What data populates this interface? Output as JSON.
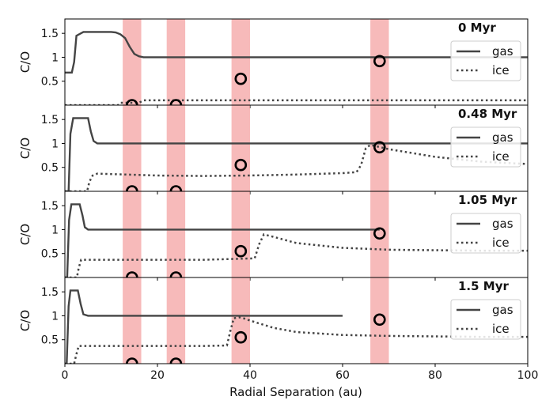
{
  "chart_data": {
    "type": "line",
    "xlabel": "Radial Separation (au)",
    "ylabel": "C/O",
    "xlim": [
      0,
      100
    ],
    "ylim": [
      0,
      1.8
    ],
    "xticks": [
      0,
      20,
      40,
      60,
      80,
      100
    ],
    "xtick_labels": [
      "0",
      "20",
      "40",
      "60",
      "80",
      "100"
    ],
    "yticks": [
      0.5,
      1,
      1.5
    ],
    "ytick_labels": [
      "0.5",
      "1",
      "1.5"
    ],
    "legend": {
      "position": "right",
      "entries": [
        "gas",
        "ice"
      ]
    },
    "colors": {
      "line": "#444444",
      "band": "#f4a3a3",
      "marker": "#000000"
    },
    "shaded_bands": [
      [
        12.5,
        16.5
      ],
      [
        22,
        26
      ],
      [
        36,
        40
      ],
      [
        66,
        70
      ]
    ],
    "markers": {
      "x": [
        14.5,
        24,
        38,
        68
      ],
      "y": [
        0,
        0,
        0.55,
        0.92
      ]
    },
    "panels": [
      {
        "title": "0 Myr",
        "series": [
          {
            "name": "gas",
            "style": "solid",
            "x": [
              0,
              1.5,
              2,
              2.5,
              4,
              10,
              11,
              12,
              13,
              14,
              15,
              16,
              17,
              20,
              40,
              60,
              80,
              100
            ],
            "y": [
              0.68,
              0.68,
              0.9,
              1.45,
              1.53,
              1.53,
              1.52,
              1.48,
              1.4,
              1.22,
              1.07,
              1.02,
              1.0,
              1.0,
              1.0,
              1.0,
              1.0,
              1.0
            ]
          },
          {
            "name": "ice",
            "style": "dotted",
            "x": [
              0,
              11.5,
              12,
              16,
              17,
              100
            ],
            "y": [
              0,
              0,
              0.05,
              0.05,
              0.1,
              0.1
            ]
          }
        ]
      },
      {
        "title": "0.48 Myr",
        "series": [
          {
            "name": "gas",
            "style": "solid",
            "x": [
              0,
              0.8,
              1.2,
              1.8,
              3,
              5,
              5.6,
              6.2,
              7,
              10,
              30,
              50,
              70,
              90,
              100
            ],
            "y": [
              0.0,
              0.0,
              1.2,
              1.53,
              1.53,
              1.53,
              1.25,
              1.05,
              1.0,
              1.0,
              1.0,
              1.0,
              1.0,
              1.0,
              1.0
            ],
            "_x_end": 100
          },
          {
            "name": "ice",
            "style": "dotted",
            "x": [
              0,
              4.8,
              5.3,
              6,
              7,
              10,
              20,
              30,
              40,
              50,
              60,
              63,
              64,
              65,
              66,
              70,
              80,
              90,
              100
            ],
            "y": [
              0,
              0,
              0.2,
              0.33,
              0.37,
              0.36,
              0.33,
              0.32,
              0.33,
              0.35,
              0.38,
              0.4,
              0.55,
              0.9,
              0.97,
              0.88,
              0.72,
              0.62,
              0.57
            ]
          }
        ]
      },
      {
        "title": "1.05 Myr",
        "series": [
          {
            "name": "gas",
            "style": "solid",
            "x": [
              0,
              0.5,
              0.9,
              1.4,
              2.5,
              3.2,
              3.8,
              4.3,
              5,
              10,
              30,
              50,
              68
            ],
            "y": [
              0.0,
              0.0,
              1.2,
              1.53,
              1.53,
              1.53,
              1.3,
              1.05,
              1.0,
              1.0,
              1.0,
              1.0,
              1.0
            ]
          },
          {
            "name": "ice",
            "style": "dotted",
            "x": [
              0,
              2.6,
              3,
              3.5,
              10,
              20,
              30,
              41,
              42,
              43,
              45,
              50,
              60,
              70,
              80,
              90,
              100
            ],
            "y": [
              0,
              0,
              0.2,
              0.37,
              0.37,
              0.37,
              0.37,
              0.4,
              0.7,
              0.9,
              0.85,
              0.72,
              0.62,
              0.58,
              0.57,
              0.56,
              0.56
            ]
          }
        ]
      },
      {
        "title": "1.5 Myr",
        "series": [
          {
            "name": "gas",
            "style": "solid",
            "x": [
              0,
              0.4,
              0.8,
              1.2,
              2.3,
              2.8,
              3.4,
              4,
              5,
              10,
              30,
              50,
              60
            ],
            "y": [
              0.0,
              0.0,
              1.2,
              1.53,
              1.53,
              1.53,
              1.25,
              1.03,
              1.0,
              1.0,
              1.0,
              1.0,
              1.0
            ]
          },
          {
            "name": "ice",
            "style": "dotted",
            "x": [
              0,
              2,
              2.5,
              3,
              10,
              20,
              30,
              35,
              35.8,
              36.5,
              38,
              40,
              45,
              50,
              60,
              70,
              80,
              90,
              100
            ],
            "y": [
              0,
              0,
              0.2,
              0.37,
              0.37,
              0.37,
              0.37,
              0.38,
              0.7,
              0.95,
              0.97,
              0.9,
              0.75,
              0.66,
              0.6,
              0.58,
              0.57,
              0.56,
              0.56
            ]
          }
        ]
      }
    ]
  }
}
